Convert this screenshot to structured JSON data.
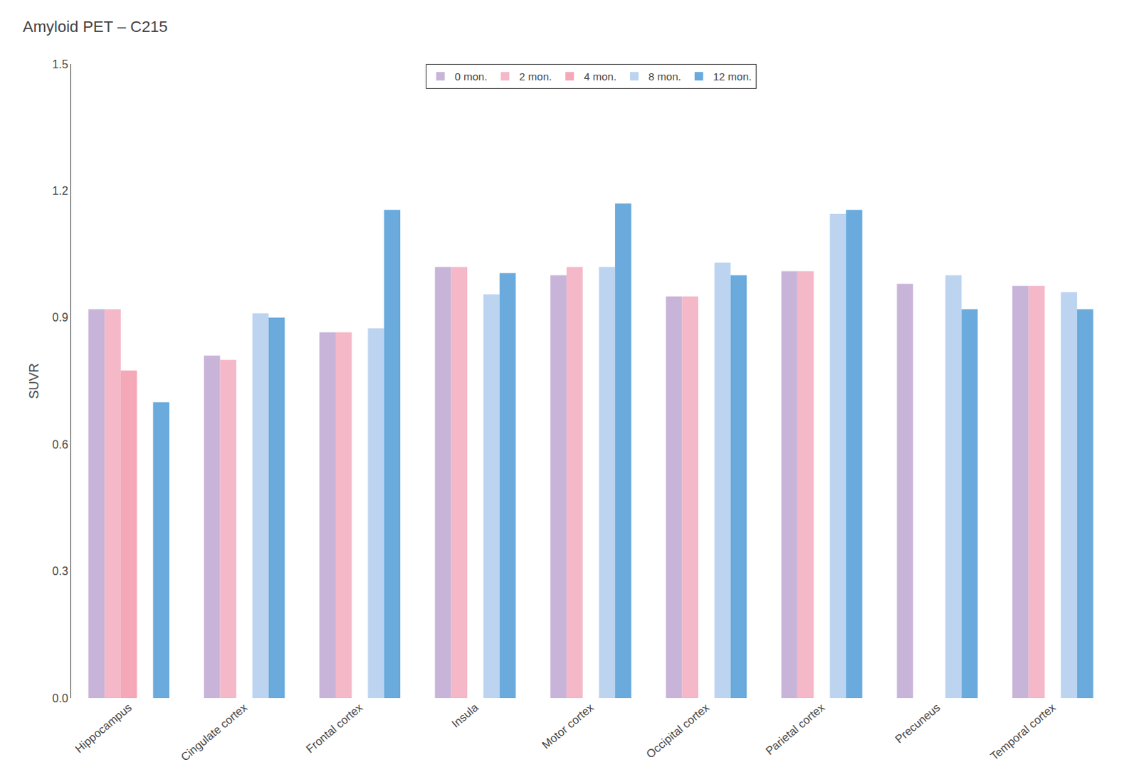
{
  "chart_data": {
    "type": "bar",
    "title": "Amyloid PET – C215",
    "ylabel": "SUVR",
    "categories": [
      "Hippocampus",
      "Cingulate cortex",
      "Frontal cortex",
      "Insula",
      "Motor cortex",
      "Occipital cortex",
      "Parietal cortex",
      "Precuneus",
      "Temporal cortex"
    ],
    "series": [
      {
        "name": "0 mon.",
        "color": "#c8b4d8",
        "values": [
          0.92,
          0.81,
          0.865,
          1.02,
          1.0,
          0.95,
          1.01,
          0.98,
          0.975
        ]
      },
      {
        "name": "2 mon.",
        "color": "#f4b8c8",
        "values": [
          0.92,
          0.8,
          0.865,
          1.02,
          1.02,
          0.95,
          1.01,
          0.0,
          0.975
        ]
      },
      {
        "name": "4 mon.",
        "color": "#f4a8b8",
        "values": [
          0.775,
          0.0,
          0.0,
          0.0,
          0.0,
          0.0,
          0.0,
          0.0,
          0.0
        ]
      },
      {
        "name": "8 mon.",
        "color": "#bcd4f0",
        "values": [
          0.0,
          0.91,
          0.875,
          0.955,
          1.02,
          1.03,
          1.145,
          1.0,
          0.96
        ]
      },
      {
        "name": "12 mon.",
        "color": "#6aaadc",
        "values": [
          0.7,
          0.9,
          1.155,
          1.005,
          1.17,
          1.0,
          1.155,
          0.92,
          0.92
        ]
      }
    ],
    "ylim": [
      0.0,
      1.5
    ],
    "yticks": [
      {
        "value": 0.0,
        "label": "0.0"
      },
      0.3,
      0.6,
      0.9,
      1.2,
      1.5
    ],
    "grid": false,
    "legend": "upper center"
  }
}
